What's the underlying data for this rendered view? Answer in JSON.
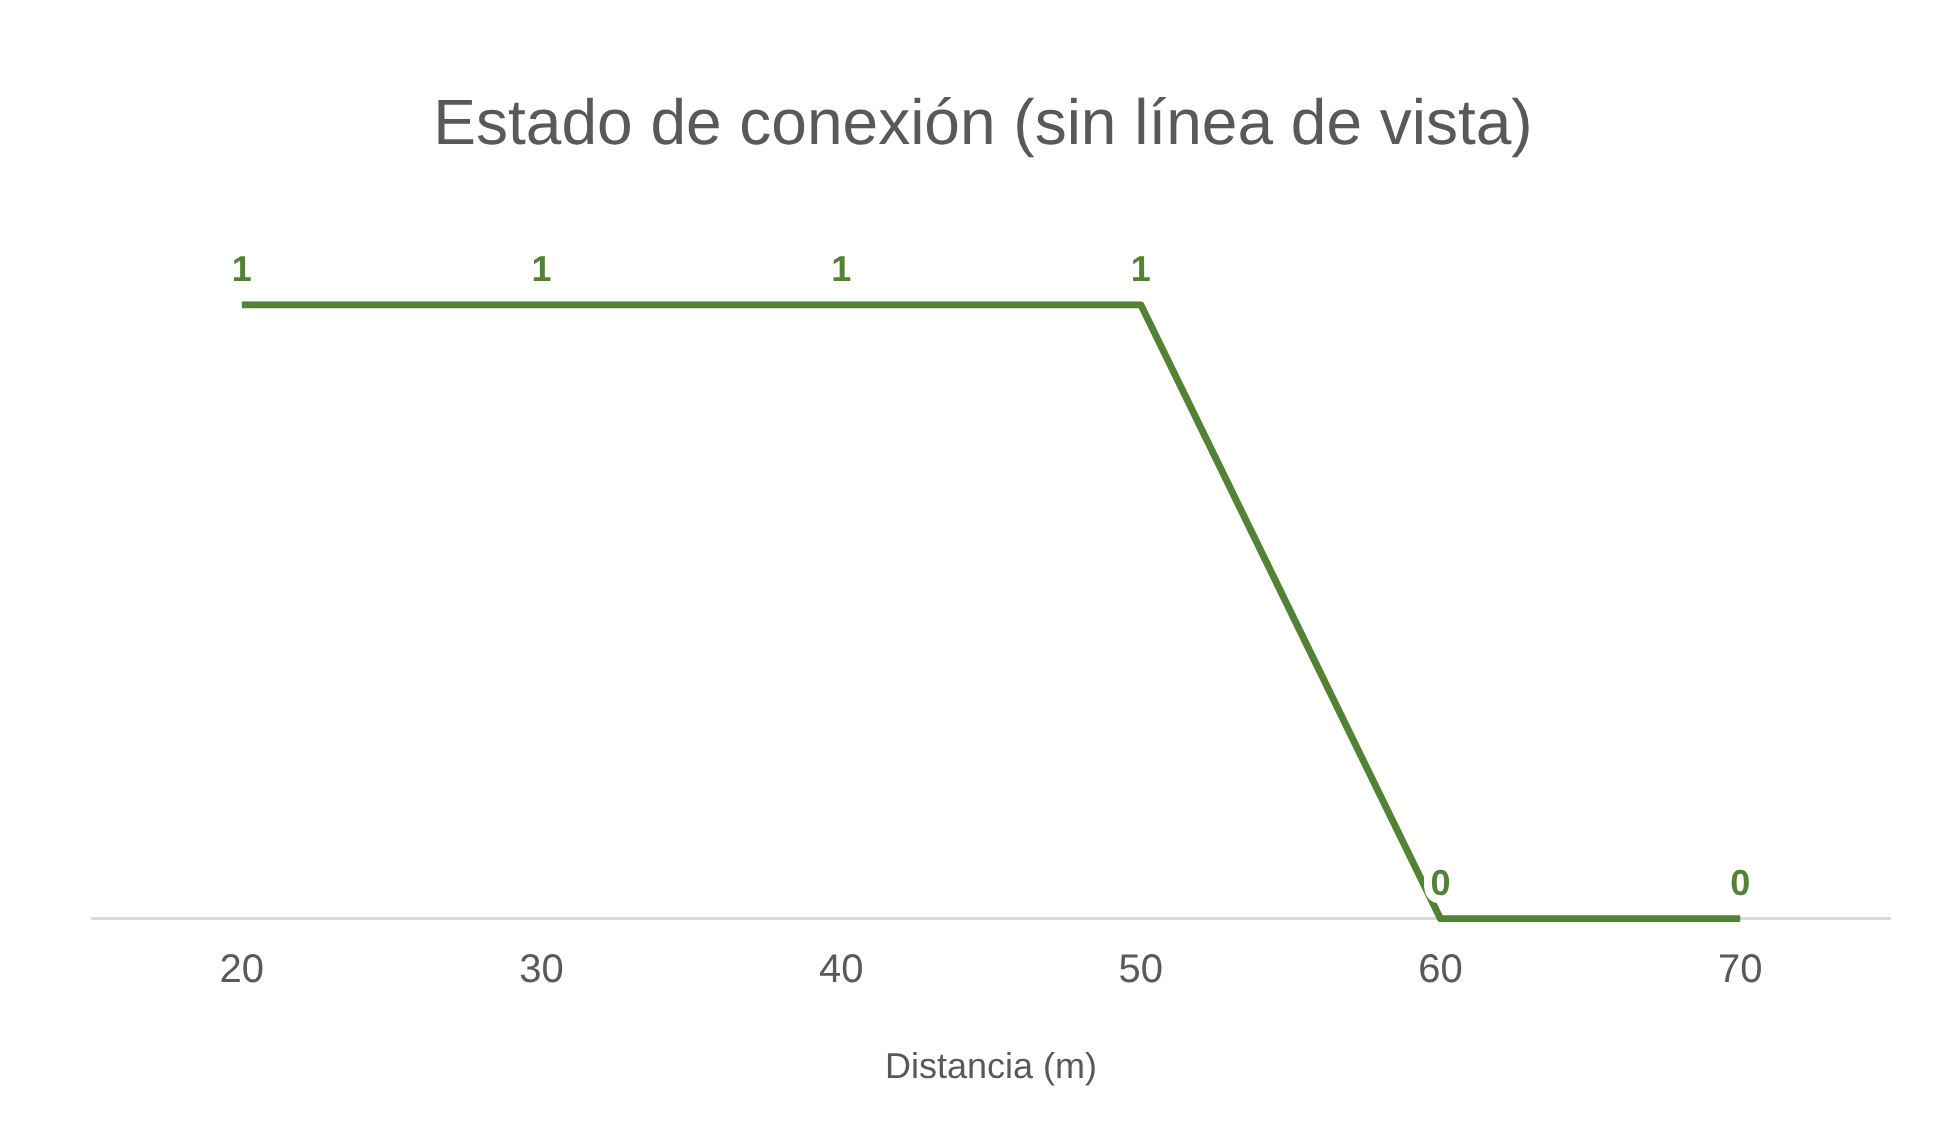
{
  "chart_data": {
    "type": "line",
    "title": "Estado de conexión (sin línea de vista)",
    "xlabel": "Distancia (m)",
    "categories": [
      "20",
      "30",
      "40",
      "50",
      "60",
      "70"
    ],
    "series": [
      {
        "color": "#548235",
        "values": [
          1,
          1,
          1,
          1,
          0,
          0
        ]
      }
    ],
    "tick_labels": "x",
    "grid": false,
    "legend": false,
    "marker": "none",
    "data_labels": true
  }
}
